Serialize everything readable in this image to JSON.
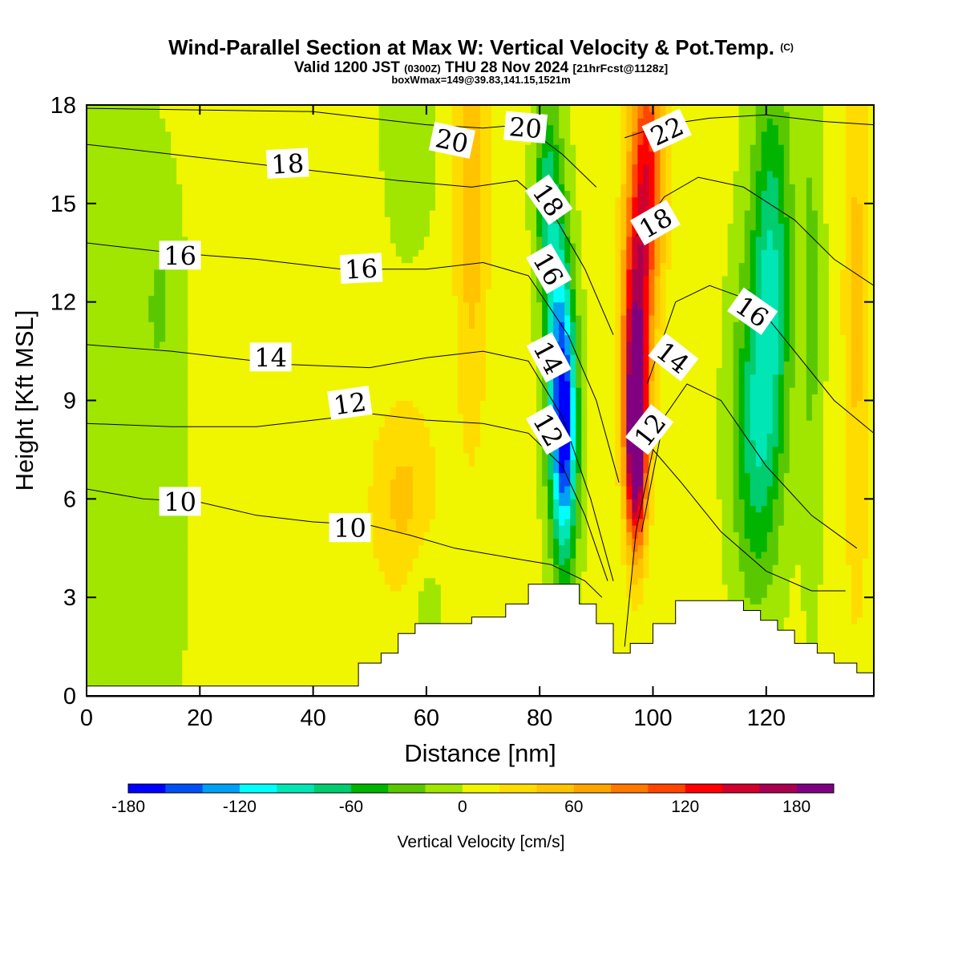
{
  "header": {
    "title_main": "Wind-Parallel Section at Max W: Vertical Velocity & Pot.Temp.",
    "title_mark": "(C)",
    "valid_prefix": "Valid 1200 JST",
    "valid_zulu": "(0300Z)",
    "valid_date": "THU 28 Nov 2024",
    "forecast": "[21hrFcst@1128z]",
    "box_info": "boxWmax=149@39.83,141.15,1521m"
  },
  "chart_data": {
    "type": "heatmap",
    "xlabel": "Distance [nm]",
    "ylabel": "Height [Kft MSL]",
    "xlim": [
      0,
      139
    ],
    "ylim": [
      0,
      18
    ],
    "x_ticks": [
      0,
      20,
      40,
      60,
      80,
      100,
      120
    ],
    "y_ticks": [
      0,
      3,
      6,
      9,
      12,
      15,
      18
    ],
    "colorbar": {
      "label": "Vertical Velocity [cm/s]",
      "min": -180,
      "max": 200,
      "step": 20,
      "tick_values": [
        -180,
        -120,
        -60,
        0,
        60,
        120,
        180
      ],
      "colors": [
        "#0000ff",
        "#0050f5",
        "#00a0f5",
        "#00ffff",
        "#00e6b4",
        "#00cc70",
        "#00b400",
        "#5ac800",
        "#a0e600",
        "#f0f500",
        "#ffdc00",
        "#ffc300",
        "#ffa500",
        "#ff7800",
        "#ff4600",
        "#ff0000",
        "#d2002d",
        "#aa0050",
        "#800080"
      ]
    },
    "terrain_profile": [
      [
        0,
        0.3
      ],
      [
        48,
        0.3
      ],
      [
        48,
        1.0
      ],
      [
        52,
        1.0
      ],
      [
        52,
        1.3
      ],
      [
        55,
        1.3
      ],
      [
        55,
        1.9
      ],
      [
        58,
        1.9
      ],
      [
        58,
        2.2
      ],
      [
        68,
        2.2
      ],
      [
        68,
        2.4
      ],
      [
        74,
        2.4
      ],
      [
        74,
        2.8
      ],
      [
        78,
        2.8
      ],
      [
        78,
        3.4
      ],
      [
        87,
        3.4
      ],
      [
        87,
        2.8
      ],
      [
        90,
        2.8
      ],
      [
        90,
        2.2
      ],
      [
        93,
        2.2
      ],
      [
        93,
        1.3
      ],
      [
        96,
        1.3
      ],
      [
        96,
        1.6
      ],
      [
        100,
        1.6
      ],
      [
        100,
        2.2
      ],
      [
        104,
        2.2
      ],
      [
        104,
        2.9
      ],
      [
        116,
        2.9
      ],
      [
        116,
        2.6
      ],
      [
        119,
        2.6
      ],
      [
        119,
        2.3
      ],
      [
        122,
        2.3
      ],
      [
        122,
        2.0
      ],
      [
        125,
        2.0
      ],
      [
        125,
        1.6
      ],
      [
        129,
        1.6
      ],
      [
        129,
        1.3
      ],
      [
        132,
        1.3
      ],
      [
        132,
        1.0
      ],
      [
        136,
        1.0
      ],
      [
        136,
        0.7
      ],
      [
        139,
        0.7
      ]
    ],
    "w_field": {
      "background": 5,
      "features": [
        {
          "x": 0,
          "y": 5,
          "sx": 14,
          "sy": 14,
          "w": -25
        },
        {
          "x": 13,
          "y": 12,
          "sx": 3,
          "sy": 3,
          "w": -20
        },
        {
          "x": 56,
          "y": 6,
          "sx": 6,
          "sy": 3,
          "w": 40
        },
        {
          "x": 60,
          "y": 3,
          "sx": 3,
          "sy": 2,
          "w": -20
        },
        {
          "x": 68,
          "y": 16,
          "sx": 3,
          "sy": 8,
          "w": 50
        },
        {
          "x": 57,
          "y": 17,
          "sx": 4,
          "sy": 3,
          "w": -25
        },
        {
          "x": 84.5,
          "y": 8,
          "sx": 2.2,
          "sy": 4,
          "w": -150
        },
        {
          "x": 83,
          "y": 11,
          "sx": 2.2,
          "sy": 5,
          "w": -90
        },
        {
          "x": 81,
          "y": 15.5,
          "sx": 2,
          "sy": 3,
          "w": -60
        },
        {
          "x": 97,
          "y": 7.5,
          "sx": 1.8,
          "sy": 3,
          "w": 190
        },
        {
          "x": 97,
          "y": 11,
          "sx": 2.5,
          "sy": 4,
          "w": 140
        },
        {
          "x": 99,
          "y": 16,
          "sx": 3,
          "sy": 4,
          "w": 120
        },
        {
          "x": 118,
          "y": 8,
          "sx": 4,
          "sy": 5,
          "w": -70
        },
        {
          "x": 121,
          "y": 13,
          "sx": 3.5,
          "sy": 6,
          "w": -80
        },
        {
          "x": 128,
          "y": 12,
          "sx": 2,
          "sy": 8,
          "w": -30
        },
        {
          "x": 136,
          "y": 12,
          "sx": 2.5,
          "sy": 10,
          "w": 40
        }
      ]
    },
    "theta_contours": [
      {
        "value": 10,
        "points": [
          [
            0,
            6.3
          ],
          [
            10,
            6.0
          ],
          [
            20,
            5.9
          ],
          [
            30,
            5.5
          ],
          [
            40,
            5.3
          ],
          [
            50,
            5.2
          ],
          [
            57,
            4.9
          ],
          [
            65,
            4.5
          ],
          [
            75,
            4.2
          ],
          [
            82,
            4.0
          ],
          [
            88,
            3.5
          ],
          [
            91,
            3.0
          ]
        ]
      },
      {
        "value": 12,
        "points": [
          [
            0,
            8.3
          ],
          [
            15,
            8.2
          ],
          [
            30,
            8.2
          ],
          [
            40,
            8.4
          ],
          [
            50,
            8.6
          ],
          [
            60,
            8.4
          ],
          [
            70,
            8.3
          ],
          [
            78,
            8.0
          ],
          [
            84,
            7.0
          ],
          [
            88,
            5.5
          ],
          [
            92,
            3.5
          ]
        ]
      },
      {
        "value": 12,
        "points": [
          [
            95,
            1.5
          ],
          [
            97,
            5.0
          ],
          [
            100,
            7.5
          ],
          [
            105,
            6.5
          ],
          [
            112,
            5.0
          ],
          [
            120,
            3.8
          ],
          [
            128,
            3.2
          ],
          [
            134,
            3.2
          ]
        ]
      },
      {
        "value": 14,
        "points": [
          [
            0,
            10.7
          ],
          [
            15,
            10.5
          ],
          [
            35,
            10.1
          ],
          [
            50,
            10.0
          ],
          [
            60,
            10.3
          ],
          [
            70,
            10.5
          ],
          [
            78,
            10.2
          ],
          [
            84,
            8.5
          ],
          [
            89,
            6.0
          ],
          [
            93,
            3.5
          ]
        ]
      },
      {
        "value": 14,
        "points": [
          [
            98,
            5.0
          ],
          [
            102,
            8.5
          ],
          [
            106,
            9.5
          ],
          [
            112,
            9.0
          ],
          [
            120,
            7.0
          ],
          [
            128,
            5.5
          ],
          [
            136,
            4.5
          ]
        ]
      },
      {
        "value": 16,
        "points": [
          [
            0,
            13.8
          ],
          [
            15,
            13.5
          ],
          [
            30,
            13.3
          ],
          [
            45,
            13.0
          ],
          [
            60,
            13.0
          ],
          [
            70,
            13.2
          ],
          [
            78,
            12.8
          ],
          [
            85,
            11.0
          ],
          [
            90,
            9.0
          ],
          [
            94,
            6.5
          ]
        ]
      },
      {
        "value": 16,
        "points": [
          [
            99,
            9.5
          ],
          [
            104,
            12.0
          ],
          [
            110,
            12.5
          ],
          [
            118,
            12.0
          ],
          [
            125,
            10.5
          ],
          [
            132,
            9.0
          ],
          [
            139,
            8.0
          ]
        ]
      },
      {
        "value": 18,
        "points": [
          [
            0,
            16.8
          ],
          [
            15,
            16.5
          ],
          [
            35,
            16.1
          ],
          [
            55,
            15.7
          ],
          [
            68,
            15.5
          ],
          [
            76,
            15.7
          ],
          [
            82,
            14.8
          ],
          [
            88,
            13.0
          ],
          [
            93,
            11.0
          ]
        ]
      },
      {
        "value": 18,
        "points": [
          [
            97,
            14.0
          ],
          [
            102,
            15.2
          ],
          [
            108,
            15.8
          ],
          [
            116,
            15.5
          ],
          [
            125,
            14.5
          ],
          [
            132,
            13.3
          ],
          [
            139,
            12.5
          ]
        ]
      },
      {
        "value": 20,
        "points": [
          [
            0,
            17.9
          ],
          [
            40,
            17.8
          ],
          [
            60,
            17.4
          ],
          [
            70,
            17.3
          ],
          [
            77,
            17.4
          ],
          [
            84,
            16.5
          ],
          [
            90,
            15.5
          ]
        ]
      },
      {
        "value": 22,
        "points": [
          [
            95,
            17.0
          ],
          [
            102,
            17.4
          ],
          [
            110,
            17.6
          ],
          [
            120,
            17.7
          ],
          [
            130,
            17.5
          ],
          [
            139,
            17.4
          ]
        ]
      }
    ],
    "contour_labels": [
      {
        "text": "10",
        "x": 16.5,
        "y": 5.9,
        "rot": 0
      },
      {
        "text": "10",
        "x": 46.5,
        "y": 5.1,
        "rot": 0
      },
      {
        "text": "12",
        "x": 46.5,
        "y": 8.9,
        "rot": -8
      },
      {
        "text": "12",
        "x": 81.5,
        "y": 8.1,
        "rot": 60
      },
      {
        "text": "12",
        "x": 99.5,
        "y": 8.1,
        "rot": -52
      },
      {
        "text": "14",
        "x": 32.5,
        "y": 10.3,
        "rot": 0
      },
      {
        "text": "14",
        "x": 81.5,
        "y": 10.3,
        "rot": 62
      },
      {
        "text": "14",
        "x": 103.5,
        "y": 10.3,
        "rot": 38
      },
      {
        "text": "16",
        "x": 16.5,
        "y": 13.4,
        "rot": 0
      },
      {
        "text": "16",
        "x": 48.5,
        "y": 13.0,
        "rot": -3
      },
      {
        "text": "16",
        "x": 81.5,
        "y": 13.0,
        "rot": 60
      },
      {
        "text": "16",
        "x": 117.5,
        "y": 11.7,
        "rot": 35
      },
      {
        "text": "18",
        "x": 35.5,
        "y": 16.2,
        "rot": -3
      },
      {
        "text": "18",
        "x": 81.5,
        "y": 15.1,
        "rot": 55
      },
      {
        "text": "18",
        "x": 100.5,
        "y": 14.4,
        "rot": -30
      },
      {
        "text": "20",
        "x": 64.5,
        "y": 16.9,
        "rot": 12
      },
      {
        "text": "20",
        "x": 77.5,
        "y": 17.3,
        "rot": 5
      },
      {
        "text": "22",
        "x": 102.5,
        "y": 17.2,
        "rot": -25
      }
    ]
  }
}
